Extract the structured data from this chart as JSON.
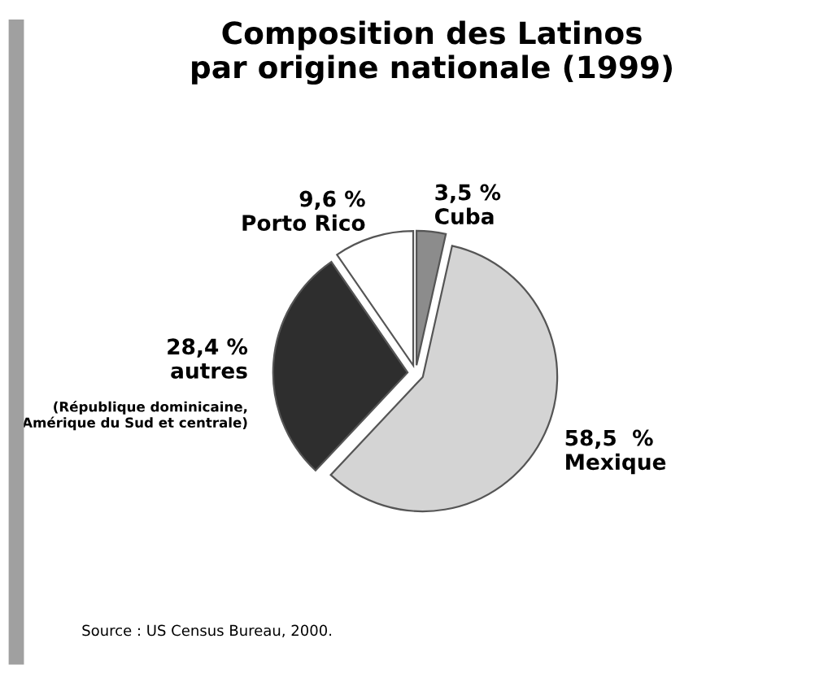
{
  "chart_data": {
    "type": "pie",
    "title": "Composition des Latinos\npar origine nationale (1999)",
    "categories": [
      "Cuba",
      "Mexique",
      "autres",
      "Porto Rico"
    ],
    "values": [
      3.5,
      58.5,
      28.4,
      9.6
    ],
    "value_labels": [
      "3,5 %",
      "58,5  %",
      "28,4 %",
      "9,6 %"
    ],
    "colors": [
      "#8c8c8c",
      "#d4d4d4",
      "#2e2e2e",
      "#ffffff"
    ],
    "annotations": [
      "(République dominicaine,\nAmérique du Sud et centrale)",
      "Source : US Census Bureau, 2000."
    ],
    "legend": false
  }
}
